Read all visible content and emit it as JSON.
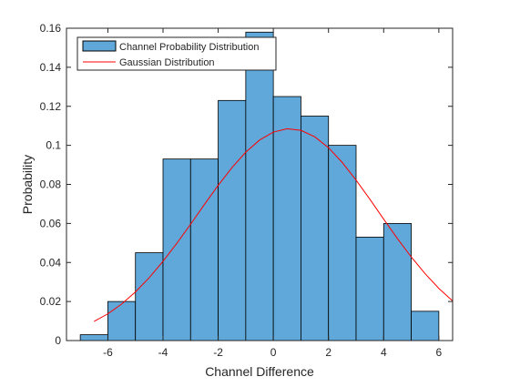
{
  "chart_data": {
    "type": "bar",
    "xlabel": "Channel Difference",
    "ylabel": "Probability",
    "xlim": [
      -7.5,
      6.5
    ],
    "ylim": [
      0,
      0.16
    ],
    "xticks": [
      -6,
      -4,
      -2,
      0,
      2,
      4,
      6
    ],
    "xtick_labels": [
      "-6",
      "-4",
      "-2",
      "0",
      "2",
      "4",
      "6"
    ],
    "yticks": [
      0,
      0.02,
      0.04,
      0.06,
      0.08,
      0.1,
      0.12,
      0.14,
      0.16
    ],
    "ytick_labels": [
      "0",
      "0.02",
      "0.04",
      "0.06",
      "0.08",
      "0.1",
      "0.12",
      "0.14",
      "0.16"
    ],
    "bin_edges": [
      -7,
      -6,
      -5,
      -4,
      -3,
      -2,
      -1,
      0,
      1,
      2,
      3,
      4,
      5,
      6
    ],
    "series": [
      {
        "name": "Channel Probability Distribution",
        "kind": "histogram",
        "color": "#5fa8d9",
        "edge_color": "#000000",
        "values": [
          0.003,
          0.02,
          0.045,
          0.093,
          0.093,
          0.123,
          0.158,
          0.125,
          0.115,
          0.1,
          0.053,
          0.06,
          0.015
        ]
      },
      {
        "name": "Gaussian Distribution",
        "kind": "line",
        "color": "#ff0000",
        "x": [
          -6.5,
          -6,
          -5.5,
          -5,
          -4.5,
          -4,
          -3.5,
          -3,
          -2.5,
          -2,
          -1.5,
          -1,
          -0.5,
          0,
          0.5,
          1,
          1.5,
          2,
          2.5,
          3,
          3.5,
          4,
          4.5,
          5,
          5.5,
          6,
          6.5
        ],
        "y": [
          0.0098,
          0.0137,
          0.0187,
          0.0249,
          0.0322,
          0.0406,
          0.0498,
          0.0596,
          0.0697,
          0.0795,
          0.0886,
          0.0965,
          0.1027,
          0.1068,
          0.1085,
          0.1077,
          0.1044,
          0.0988,
          0.0912,
          0.0822,
          0.0724,
          0.0622,
          0.0522,
          0.0428,
          0.0343,
          0.0267,
          0.0203
        ]
      }
    ],
    "legend_position": "top-left",
    "grid": false
  }
}
